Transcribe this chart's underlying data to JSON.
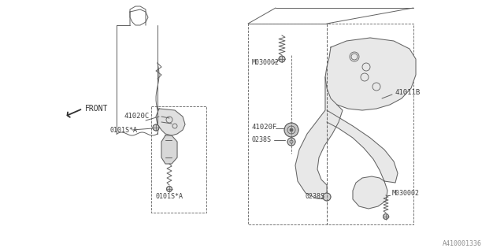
{
  "bg_color": "#ffffff",
  "line_color": "#606060",
  "text_color": "#404040",
  "fig_width": 6.4,
  "fig_height": 3.2,
  "dpi": 100,
  "watermark": "A410001336",
  "lw": 0.7,
  "labels": {
    "front": "FRONT",
    "41020C": "41020C",
    "0101S_A_left1": "0101S*A",
    "0101S_A_left2": "0101S*A",
    "41011B": "41011B",
    "M030002_left": "M030002",
    "41020F": "41020F",
    "0238S_left": "0238S",
    "0238S_bot": "0238S",
    "M030002_right": "M030002"
  }
}
